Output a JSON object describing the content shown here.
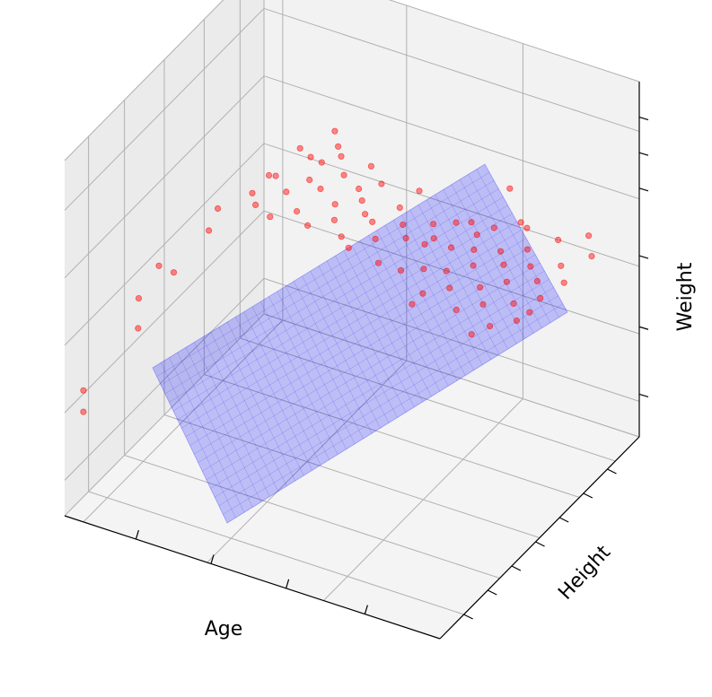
{
  "chart_data": {
    "type": "scatter",
    "projection": "3d",
    "xlabel": "Age",
    "ylabel": "Height",
    "zlabel": "Weight",
    "tick_labels": "none",
    "grid": true,
    "colors": {
      "points": "#ff0000",
      "plane": "#0000ff",
      "pane_left": "#ebebeb",
      "pane_back": "#f2f2f2",
      "pane_floor": "#f4f4f4",
      "grid": "#b0b0b0"
    },
    "series": [
      {
        "kind": "points",
        "values_uvw": [
          [
            0.05,
            0.0,
            0.31
          ],
          [
            0.05,
            0.0,
            0.37
          ],
          [
            0.07,
            0.24,
            0.5
          ],
          [
            0.06,
            0.36,
            0.52
          ],
          [
            0.1,
            0.18,
            0.46
          ],
          [
            0.11,
            0.34,
            0.53
          ],
          [
            0.1,
            0.58,
            0.57
          ],
          [
            0.14,
            0.46,
            0.59
          ],
          [
            0.16,
            0.64,
            0.6
          ],
          [
            0.13,
            0.78,
            0.56
          ],
          [
            0.16,
            0.88,
            0.59
          ],
          [
            0.19,
            0.6,
            0.6
          ],
          [
            0.18,
            0.72,
            0.61
          ],
          [
            0.22,
            0.82,
            0.62
          ],
          [
            0.24,
            0.66,
            0.62
          ],
          [
            0.25,
            0.56,
            0.61
          ],
          [
            0.21,
            0.96,
            0.61
          ],
          [
            0.27,
            0.72,
            0.63
          ],
          [
            0.28,
            0.86,
            0.62
          ],
          [
            0.31,
            0.7,
            0.63
          ],
          [
            0.3,
            0.6,
            0.62
          ],
          [
            0.33,
            0.78,
            0.63
          ],
          [
            0.26,
            0.8,
            0.63
          ],
          [
            0.24,
            0.92,
            0.6
          ],
          [
            0.35,
            0.56,
            0.62
          ],
          [
            0.37,
            0.66,
            0.63
          ],
          [
            0.38,
            0.76,
            0.62
          ],
          [
            0.36,
            0.86,
            0.62
          ],
          [
            0.4,
            0.6,
            0.63
          ],
          [
            0.41,
            0.72,
            0.62
          ],
          [
            0.44,
            0.56,
            0.62
          ],
          [
            0.45,
            0.66,
            0.63
          ],
          [
            0.43,
            0.78,
            0.64
          ],
          [
            0.47,
            0.54,
            0.61
          ],
          [
            0.48,
            0.64,
            0.63
          ],
          [
            0.5,
            0.74,
            0.62
          ],
          [
            0.52,
            0.58,
            0.63
          ],
          [
            0.54,
            0.68,
            0.62
          ],
          [
            0.52,
            0.8,
            0.64
          ],
          [
            0.56,
            0.52,
            0.61
          ],
          [
            0.58,
            0.62,
            0.63
          ],
          [
            0.6,
            0.72,
            0.62
          ],
          [
            0.62,
            0.52,
            0.61
          ],
          [
            0.63,
            0.62,
            0.63
          ],
          [
            0.65,
            0.74,
            0.63
          ],
          [
            0.67,
            0.54,
            0.62
          ],
          [
            0.69,
            0.64,
            0.63
          ],
          [
            0.68,
            0.76,
            0.63
          ],
          [
            0.71,
            0.46,
            0.61
          ],
          [
            0.72,
            0.56,
            0.62
          ],
          [
            0.74,
            0.66,
            0.63
          ],
          [
            0.73,
            0.78,
            0.62
          ],
          [
            0.76,
            0.5,
            0.62
          ],
          [
            0.77,
            0.6,
            0.63
          ],
          [
            0.79,
            0.7,
            0.62
          ],
          [
            0.78,
            0.82,
            0.63
          ],
          [
            0.81,
            0.44,
            0.61
          ],
          [
            0.82,
            0.54,
            0.62
          ],
          [
            0.83,
            0.64,
            0.63
          ],
          [
            0.84,
            0.74,
            0.62
          ],
          [
            0.86,
            0.48,
            0.62
          ],
          [
            0.87,
            0.58,
            0.63
          ],
          [
            0.88,
            0.68,
            0.62
          ],
          [
            0.89,
            0.8,
            0.63
          ],
          [
            0.91,
            0.42,
            0.61
          ],
          [
            0.92,
            0.52,
            0.62
          ],
          [
            0.93,
            0.62,
            0.63
          ],
          [
            0.94,
            0.72,
            0.62
          ],
          [
            0.96,
            0.46,
            0.62
          ],
          [
            0.97,
            0.56,
            0.63
          ],
          [
            0.95,
            0.84,
            0.64
          ],
          [
            0.98,
            0.66,
            0.62
          ],
          [
            0.74,
            0.84,
            0.7
          ],
          [
            0.78,
            0.6,
            0.72
          ],
          [
            0.86,
            0.7,
            0.71
          ],
          [
            0.66,
            0.5,
            0.54
          ],
          [
            0.84,
            0.46,
            0.54
          ],
          [
            0.92,
            0.6,
            0.55
          ],
          [
            0.58,
            0.76,
            0.55
          ],
          [
            0.99,
            0.78,
            0.63
          ]
        ]
      },
      {
        "kind": "regression-plane"
      }
    ]
  }
}
